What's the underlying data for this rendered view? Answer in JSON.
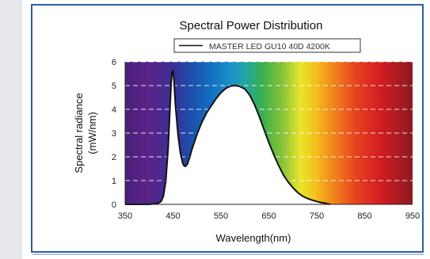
{
  "chart_data": {
    "type": "line",
    "title": "Spectral Power Distribution",
    "legend": [
      "MASTER LED GU10  40D 4200K"
    ],
    "xlabel": "Wavelength(nm)",
    "ylabel": [
      "Spectral radiance",
      "(mW/nm)"
    ],
    "xlim": [
      350,
      950
    ],
    "ylim": [
      0,
      6
    ],
    "x_ticks": [
      "350",
      "450",
      "550",
      "650",
      "750",
      "850",
      "950"
    ],
    "y_ticks": [
      "0",
      "1",
      "2",
      "3",
      "4",
      "5",
      "6"
    ],
    "grid": "dashed horizontal",
    "background": "visible-spectrum gradient",
    "series": [
      {
        "name": "MASTER LED GU10  40D 4200K",
        "x": [
          350,
          400,
          410,
          420,
          425,
          430,
          435,
          440,
          443,
          446,
          448,
          450,
          452,
          455,
          460,
          465,
          470,
          473,
          476,
          480,
          485,
          490,
          500,
          510,
          520,
          530,
          540,
          550,
          560,
          570,
          580,
          590,
          600,
          610,
          620,
          630,
          640,
          650,
          660,
          670,
          680,
          690,
          700,
          710,
          720,
          730,
          740,
          750,
          760,
          770,
          778
        ],
        "y": [
          0.0,
          0.0,
          0.02,
          0.06,
          0.12,
          0.35,
          1.0,
          2.4,
          3.8,
          5.1,
          5.55,
          5.65,
          5.2,
          4.2,
          3.0,
          2.2,
          1.75,
          1.62,
          1.6,
          1.7,
          2.0,
          2.35,
          2.95,
          3.45,
          3.85,
          4.15,
          4.45,
          4.7,
          4.88,
          4.98,
          5.0,
          4.96,
          4.85,
          4.6,
          4.2,
          3.7,
          3.15,
          2.6,
          2.1,
          1.65,
          1.25,
          0.95,
          0.7,
          0.5,
          0.35,
          0.25,
          0.18,
          0.12,
          0.07,
          0.04,
          0.0
        ]
      }
    ]
  }
}
